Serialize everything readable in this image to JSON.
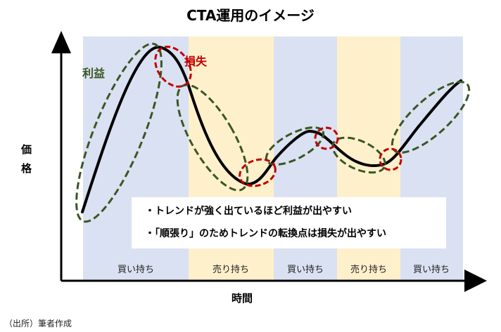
{
  "title": "CTA運用のイメージ",
  "y_axis_label": [
    "価",
    "格"
  ],
  "x_axis_label": "時間",
  "phases": [
    {
      "label": "買い持ち",
      "color": "#dae1f2"
    },
    {
      "label": "売り持ち",
      "color": "#fff0cc"
    },
    {
      "label": "買い持ち",
      "color": "#dae1f2"
    },
    {
      "label": "売り持ち",
      "color": "#fff0cc"
    },
    {
      "label": "買い持ち",
      "color": "#dae1f2"
    }
  ],
  "annotations": {
    "profit": {
      "label": "利益",
      "color": "#385723"
    },
    "loss": {
      "label": "損失",
      "color": "#c00000"
    }
  },
  "bullets": [
    "・トレンドが強く出ているほど利益が出やすい",
    "・「順張り」のためトレンドの転換点は損失が出やすい"
  ],
  "source_note": "（出所）筆者作成"
}
